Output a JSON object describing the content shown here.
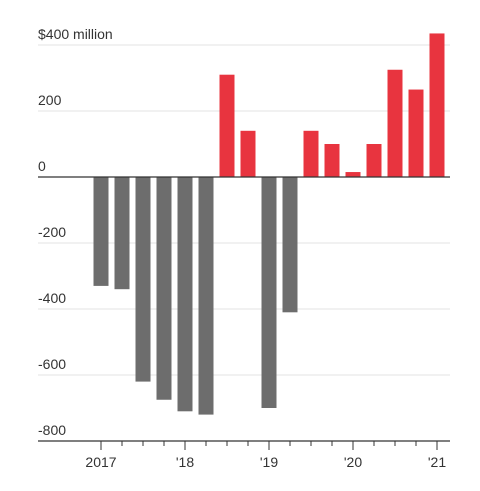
{
  "chart_data": {
    "type": "bar",
    "categories": [
      "2017",
      null,
      null,
      null,
      "'18",
      null,
      null,
      null,
      "'19",
      null,
      null,
      null,
      "'20",
      null,
      null,
      null,
      "'21"
    ],
    "values": [
      -330,
      -340,
      -620,
      -675,
      -710,
      -720,
      310,
      140,
      -700,
      -410,
      140,
      100,
      15,
      100,
      325,
      265,
      435
    ],
    "positive_color": "#e8343f",
    "negative_color": "#6d6d6d",
    "ylim": [
      -800,
      450
    ],
    "yticks": [
      -800,
      -600,
      -400,
      -200,
      0,
      200,
      {
        "value": 400,
        "label": "$400 million"
      }
    ],
    "grid": true
  }
}
